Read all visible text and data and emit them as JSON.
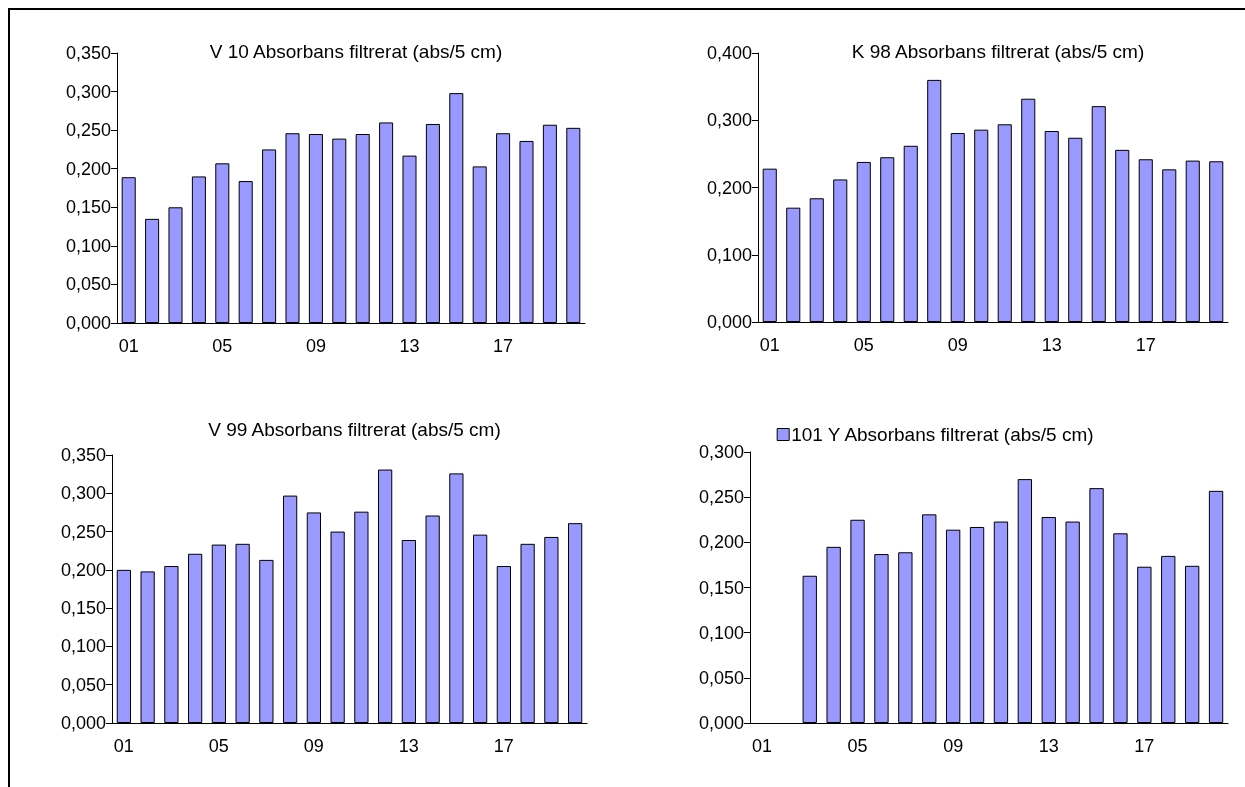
{
  "chart_data": [
    {
      "type": "bar",
      "title": "V 10 Absorbans filtrerat (abs/5 cm)",
      "categories": [
        "01",
        null,
        null,
        null,
        "05",
        null,
        null,
        null,
        "09",
        null,
        null,
        null,
        "13",
        null,
        null,
        null,
        "17",
        null,
        null,
        null
      ],
      "series": [
        {
          "color": "#9999ff",
          "values": [
            0.189,
            0.135,
            0.15,
            0.19,
            0.207,
            0.184,
            0.225,
            0.246,
            0.245,
            0.239,
            0.245,
            0.26,
            0.217,
            0.258,
            0.298,
            0.203,
            0.246,
            0.236,
            0.257,
            0.253
          ]
        }
      ],
      "ylim": [
        0,
        0.35
      ],
      "yticks": [
        {
          "value": 0,
          "label": "0,000"
        },
        {
          "value": 0.05,
          "label": "0,050"
        },
        {
          "value": 0.1,
          "label": "0,100"
        },
        {
          "value": 0.15,
          "label": "0,150"
        },
        {
          "value": 0.2,
          "label": "0,200"
        },
        {
          "value": 0.25,
          "label": "0,250"
        },
        {
          "value": 0.3,
          "label": "0,300"
        },
        {
          "value": 0.35,
          "label": "0,350"
        }
      ]
    },
    {
      "type": "bar",
      "title": "K 98 Absorbans filtrerat (abs/5 cm)",
      "categories": [
        "01",
        null,
        null,
        null,
        "05",
        null,
        null,
        null,
        "09",
        null,
        null,
        null,
        "13",
        null,
        null,
        null,
        "17",
        null,
        null,
        null
      ],
      "series": [
        {
          "color": "#9999ff",
          "values": [
            0.228,
            0.17,
            0.184,
            0.212,
            0.238,
            0.245,
            0.262,
            0.36,
            0.281,
            0.286,
            0.294,
            0.332,
            0.284,
            0.274,
            0.321,
            0.256,
            0.242,
            0.227,
            0.24,
            0.239
          ]
        }
      ],
      "ylim": [
        0,
        0.4
      ],
      "yticks": [
        {
          "value": 0,
          "label": "0,000"
        },
        {
          "value": 0.1,
          "label": "0,100"
        },
        {
          "value": 0.2,
          "label": "0,200"
        },
        {
          "value": 0.3,
          "label": "0,300"
        },
        {
          "value": 0.4,
          "label": "0,400"
        }
      ]
    },
    {
      "type": "bar",
      "title": "V 99 Absorbans filtrerat (abs/5 cm)",
      "categories": [
        "01",
        null,
        null,
        null,
        "05",
        null,
        null,
        null,
        "09",
        null,
        null,
        null,
        "13",
        null,
        null,
        null,
        "17",
        null,
        null,
        null
      ],
      "series": [
        {
          "color": "#9999ff",
          "values": [
            0.2,
            0.198,
            0.205,
            0.221,
            0.233,
            0.234,
            0.213,
            0.297,
            0.275,
            0.25,
            0.276,
            0.331,
            0.239,
            0.271,
            0.326,
            0.246,
            0.205,
            0.234,
            0.243,
            0.261
          ]
        }
      ],
      "ylim": [
        0,
        0.35
      ],
      "yticks": [
        {
          "value": 0,
          "label": "0,000"
        },
        {
          "value": 0.05,
          "label": "0,050"
        },
        {
          "value": 0.1,
          "label": "0,100"
        },
        {
          "value": 0.15,
          "label": "0,150"
        },
        {
          "value": 0.2,
          "label": "0,200"
        },
        {
          "value": 0.25,
          "label": "0,250"
        },
        {
          "value": 0.3,
          "label": "0,300"
        },
        {
          "value": 0.35,
          "label": "0,350"
        }
      ]
    },
    {
      "type": "bar",
      "categories": [
        "01",
        null,
        null,
        null,
        "05",
        null,
        null,
        null,
        "09",
        null,
        null,
        null,
        "13",
        null,
        null,
        null,
        "17",
        null,
        null,
        null
      ],
      "series": [
        {
          "name": "101 Y Absorbans filtrerat (abs/5 cm)",
          "color": "#9999ff",
          "values": [
            null,
            null,
            0.163,
            0.195,
            0.225,
            0.187,
            0.189,
            0.231,
            0.214,
            0.217,
            0.223,
            0.27,
            0.228,
            0.223,
            0.26,
            0.21,
            0.173,
            0.185,
            0.174,
            0.257
          ]
        }
      ],
      "ylim": [
        0,
        0.3
      ],
      "yticks": [
        {
          "value": 0,
          "label": "0,000"
        },
        {
          "value": 0.05,
          "label": "0,050"
        },
        {
          "value": 0.1,
          "label": "0,100"
        },
        {
          "value": 0.15,
          "label": "0,150"
        },
        {
          "value": 0.2,
          "label": "0,200"
        },
        {
          "value": 0.25,
          "label": "0,250"
        },
        {
          "value": 0.3,
          "label": "0,300"
        }
      ],
      "legend": "top"
    }
  ]
}
